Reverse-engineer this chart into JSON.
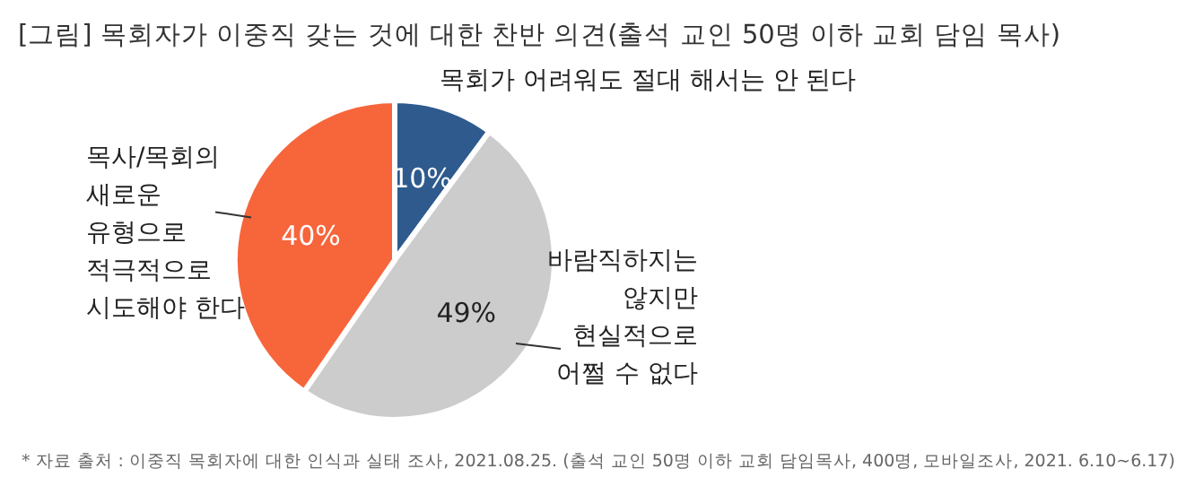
{
  "chart_data": {
    "type": "pie",
    "title": "[그림] 목회자가 이중직 갖는 것에 대한 찬반 의견(출석 교인 50명 이하 교회 담임 목사)",
    "categories": [
      "목회가 어려워도 절대 해서는 안 된다",
      "바람직하지는\n않지만\n현실적으로\n어쩔 수 없다",
      "목사/목회의\n새로운\n유형으로\n적극적으로\n시도해야 한다"
    ],
    "values": [
      10,
      49,
      40
    ],
    "value_labels": [
      "10%",
      "49%",
      "40%"
    ],
    "colors": [
      "#2e5a8e",
      "#cccccc",
      "#f7653b"
    ],
    "annotations": [
      "* 자료 출처 : 이중직 목회자에 대한 인식과 실태 조사, 2021.08.25. (출석 교인 50명 이하 교회 담임목사, 400명, 모바일조사, 2021. 6.10~6.17)"
    ]
  }
}
